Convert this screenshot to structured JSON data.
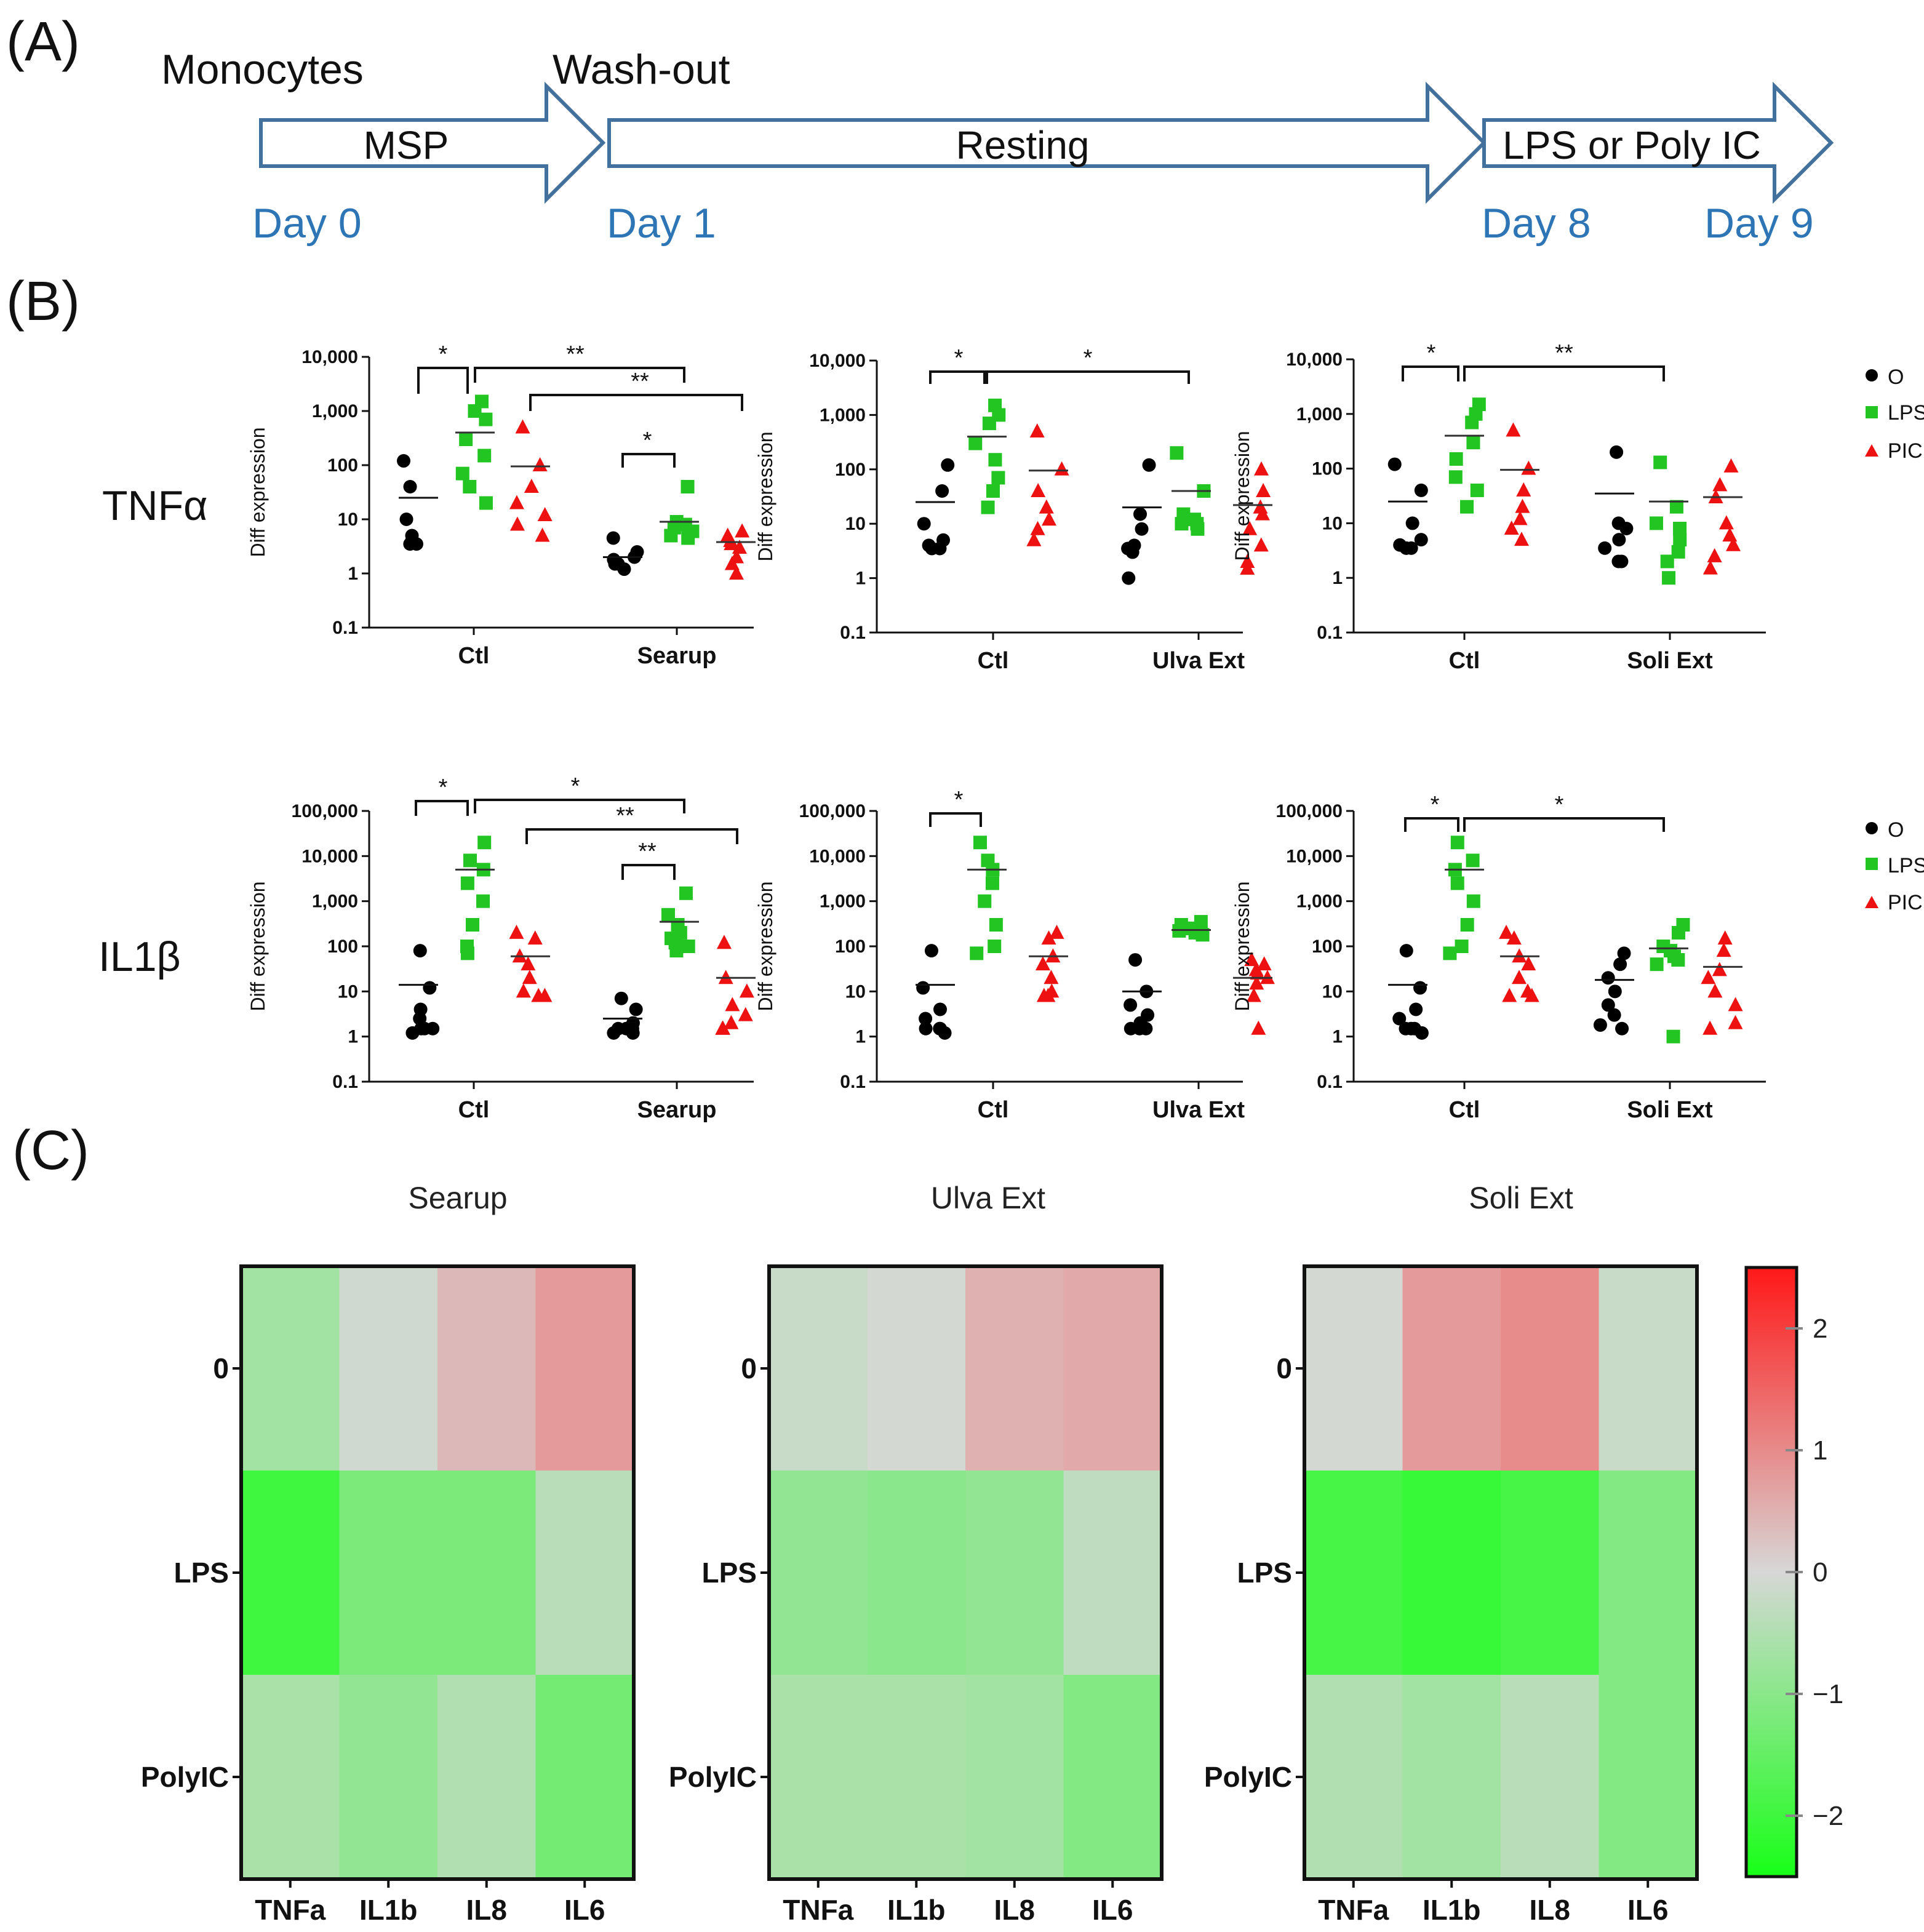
{
  "colors": {
    "arrow_stroke": "#41719C",
    "day_text": "#2E75B6",
    "ctrl": "#000000",
    "lps": "#22C522",
    "pic": "#EE1111"
  },
  "panel_labels": {
    "a": "(A)",
    "b": "(B)",
    "c": "(C)"
  },
  "timeline": {
    "top_labels": [
      "Monocytes",
      "Wash-out"
    ],
    "arrows": [
      "MSP",
      "Resting",
      "LPS or Poly IC"
    ],
    "days": [
      "Day 0",
      "Day 1",
      "Day 8",
      "Day 9"
    ]
  },
  "panel_b": {
    "row_labels": [
      "TNFα",
      "IL1β"
    ],
    "legend": [
      {
        "name": "O",
        "shape": "circle",
        "color": "#000000"
      },
      {
        "name": "LPS",
        "shape": "square",
        "color": "#22C522"
      },
      {
        "name": "PIC",
        "shape": "triangle",
        "color": "#EE1111"
      }
    ],
    "ylabel": "Diff expression",
    "ticks_tnf": [
      "10,000",
      "1,000",
      "100",
      "10",
      "1",
      "0.1"
    ],
    "ticks_il": [
      "100,000",
      "10,000",
      "1,000",
      "100",
      "10",
      "1",
      "0.1"
    ]
  },
  "chart_data": [
    {
      "type": "scatter",
      "title": "TNFα",
      "ylabel": "Diff expression",
      "yscale": "log",
      "ylim": [
        0.1,
        10000
      ],
      "categories": [
        "Ctl",
        "Searup"
      ],
      "series": [
        {
          "name": "O",
          "values": [
            [
              120,
              40,
              10,
              5,
              3.5,
              3.5,
              4
            ],
            [
              4.5,
              2.5,
              2,
              1.5,
              1.5,
              1.2,
              1.8
            ]
          ],
          "means": [
            25,
            2
          ]
        },
        {
          "name": "LPS",
          "values": [
            [
              1500,
              1000,
              700,
              300,
              150,
              70,
              40,
              20
            ],
            [
              40,
              9,
              8,
              7,
              6,
              5,
              4.5
            ]
          ],
          "means": [
            400,
            9
          ]
        },
        {
          "name": "PIC",
          "values": [
            [
              500,
              100,
              40,
              20,
              12,
              8,
              5
            ],
            [
              6,
              5,
              4,
              3.5,
              3,
              2,
              1.5,
              1
            ]
          ],
          "means": [
            95,
            3.8
          ]
        }
      ],
      "significance": [
        {
          "label": "*"
        },
        {
          "label": "**"
        },
        {
          "label": "**"
        },
        {
          "label": "*"
        }
      ]
    },
    {
      "type": "scatter",
      "title": "TNFα",
      "ylabel": "Diff expression",
      "yscale": "log",
      "ylim": [
        0.1,
        10000
      ],
      "categories": [
        "Ctl",
        "Ulva Ext"
      ],
      "series": [
        {
          "name": "O",
          "values": [
            [
              120,
              40,
              10,
              5,
              3.5,
              3.5,
              4
            ],
            [
              120,
              15,
              8,
              4,
              3.5,
              3,
              1
            ]
          ],
          "means": [
            25,
            20
          ]
        },
        {
          "name": "LPS",
          "values": [
            [
              1500,
              1000,
              700,
              300,
              150,
              70,
              40,
              20
            ],
            [
              200,
              40,
              15,
              12,
              10,
              10,
              8
            ]
          ],
          "means": [
            400,
            40
          ]
        },
        {
          "name": "PIC",
          "values": [
            [
              500,
              100,
              40,
              20,
              12,
              8,
              5
            ],
            [
              100,
              40,
              20,
              15,
              8,
              4,
              2,
              1.5
            ]
          ],
          "means": [
            95,
            22
          ]
        }
      ],
      "significance": [
        {
          "label": "*"
        },
        {
          "label": "*"
        }
      ]
    },
    {
      "type": "scatter",
      "title": "TNFα",
      "ylabel": "Diff expression",
      "yscale": "log",
      "ylim": [
        0.1,
        10000
      ],
      "categories": [
        "Ctl",
        "Soli Ext"
      ],
      "series": [
        {
          "name": "O",
          "values": [
            [
              120,
              40,
              10,
              5,
              3.5,
              3.5,
              4
            ],
            [
              200,
              10,
              8,
              5,
              3.5,
              2,
              2
            ]
          ],
          "means": [
            25,
            35
          ]
        },
        {
          "name": "LPS",
          "values": [
            [
              1500,
              1000,
              700,
              300,
              150,
              70,
              40,
              20
            ],
            [
              130,
              20,
              10,
              8,
              5,
              3,
              2,
              1
            ]
          ],
          "means": [
            400,
            25
          ]
        },
        {
          "name": "PIC",
          "values": [
            [
              500,
              100,
              40,
              20,
              12,
              8,
              5
            ],
            [
              110,
              50,
              30,
              10,
              6,
              4,
              2.5,
              1.5
            ]
          ],
          "means": [
            95,
            30
          ]
        }
      ],
      "significance": [
        {
          "label": "*"
        },
        {
          "label": "**"
        }
      ]
    },
    {
      "type": "scatter",
      "title": "IL1β",
      "ylabel": "Diff expression",
      "yscale": "log",
      "ylim": [
        0.1,
        100000
      ],
      "categories": [
        "Ctl",
        "Searup"
      ],
      "series": [
        {
          "name": "O",
          "values": [
            [
              80,
              12,
              4,
              2.5,
              1.5,
              1.5,
              1.2,
              1.5
            ],
            [
              7,
              4,
              2,
              1.5,
              1.5,
              1.2,
              1.2,
              1.5
            ]
          ],
          "means": [
            14,
            2.5
          ]
        },
        {
          "name": "LPS",
          "values": [
            [
              20000,
              8000,
              5000,
              2500,
              1000,
              300,
              100,
              70
            ],
            [
              1500,
              500,
              300,
              200,
              150,
              120,
              100,
              80
            ]
          ],
          "means": [
            5000,
            350
          ]
        },
        {
          "name": "PIC",
          "values": [
            [
              200,
              150,
              60,
              40,
              20,
              10,
              8,
              8
            ],
            [
              120,
              20,
              10,
              5,
              3,
              2,
              1.5,
              1.5
            ]
          ],
          "means": [
            60,
            20
          ]
        }
      ],
      "significance": [
        {
          "label": "*"
        },
        {
          "label": "*"
        },
        {
          "label": "**"
        },
        {
          "label": "**"
        }
      ]
    },
    {
      "type": "scatter",
      "title": "IL1β",
      "ylabel": "Diff expression",
      "yscale": "log",
      "ylim": [
        0.1,
        100000
      ],
      "categories": [
        "Ctl",
        "Ulva Ext"
      ],
      "series": [
        {
          "name": "O",
          "values": [
            [
              80,
              12,
              4,
              2.5,
              1.5,
              1.5,
              1.2,
              1.5
            ],
            [
              50,
              10,
              5,
              3,
              2,
              1.5,
              1.5,
              1.5
            ]
          ],
          "means": [
            14,
            10
          ]
        },
        {
          "name": "LPS",
          "values": [
            [
              20000,
              8000,
              5000,
              2500,
              1000,
              300,
              100,
              70
            ],
            [
              350,
              300,
              250,
              220,
              200,
              180,
              200,
              250
            ]
          ],
          "means": [
            5000,
            230
          ]
        },
        {
          "name": "PIC",
          "values": [
            [
              200,
              150,
              60,
              40,
              20,
              10,
              8,
              8
            ],
            [
              50,
              40,
              30,
              25,
              20,
              15,
              8,
              1.5
            ]
          ],
          "means": [
            60,
            20
          ]
        }
      ],
      "significance": [
        {
          "label": "*"
        }
      ]
    },
    {
      "type": "scatter",
      "title": "IL1β",
      "ylabel": "Diff expression",
      "yscale": "log",
      "ylim": [
        0.1,
        100000
      ],
      "categories": [
        "Ctl",
        "Soli Ext"
      ],
      "series": [
        {
          "name": "O",
          "values": [
            [
              80,
              12,
              4,
              2.5,
              1.5,
              1.5,
              1.2,
              1.5
            ],
            [
              70,
              40,
              20,
              10,
              5,
              3,
              1.8,
              1.5
            ]
          ],
          "means": [
            14,
            18
          ]
        },
        {
          "name": "LPS",
          "values": [
            [
              20000,
              8000,
              5000,
              2500,
              1000,
              300,
              100,
              70
            ],
            [
              300,
              200,
              100,
              80,
              60,
              50,
              40,
              1
            ]
          ],
          "means": [
            5000,
            90
          ]
        },
        {
          "name": "PIC",
          "values": [
            [
              200,
              150,
              60,
              40,
              20,
              10,
              8,
              8
            ],
            [
              150,
              80,
              30,
              20,
              10,
              5,
              2,
              1.5
            ]
          ],
          "means": [
            60,
            35
          ]
        }
      ],
      "significance": [
        {
          "label": "*"
        },
        {
          "label": "*"
        }
      ]
    },
    {
      "type": "heatmap",
      "title": "Searup",
      "x": [
        "TNFa",
        "IL1b",
        "IL8",
        "IL6"
      ],
      "y": [
        "0",
        "LPS",
        "PolyIC"
      ],
      "values": [
        [
          -0.7,
          -0.1,
          0.4,
          0.8
        ],
        [
          -2.0,
          -1.2,
          -1.2,
          -0.4
        ],
        [
          -0.6,
          -0.9,
          -0.5,
          -1.3
        ]
      ]
    },
    {
      "type": "heatmap",
      "title": "Ulva Ext",
      "x": [
        "TNFa",
        "IL1b",
        "IL8",
        "IL6"
      ],
      "y": [
        "0",
        "LPS",
        "PolyIC"
      ],
      "values": [
        [
          -0.2,
          -0.05,
          0.5,
          0.6
        ],
        [
          -0.9,
          -1.0,
          -0.9,
          -0.3
        ],
        [
          -0.6,
          -0.6,
          -0.7,
          -1.1
        ]
      ]
    },
    {
      "type": "heatmap",
      "title": "Soli Ext",
      "x": [
        "TNFa",
        "IL1b",
        "IL8",
        "IL6"
      ],
      "y": [
        "0",
        "LPS",
        "PolyIC"
      ],
      "values": [
        [
          -0.05,
          0.8,
          1.0,
          -0.2
        ],
        [
          -1.9,
          -2.1,
          -1.9,
          -1.1
        ],
        [
          -0.5,
          -0.7,
          -0.4,
          -1.1
        ]
      ]
    },
    {
      "type": "colorbar",
      "ticks": [
        "2",
        "1",
        "0",
        "−1",
        "−2"
      ],
      "range": [
        -2.5,
        2.5
      ]
    }
  ]
}
